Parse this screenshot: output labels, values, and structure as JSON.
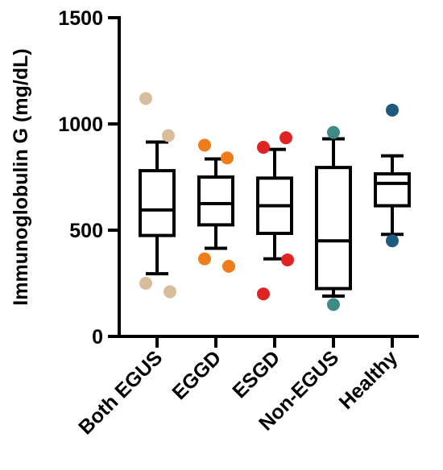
{
  "chart_data": {
    "type": "box",
    "title": "",
    "xlabel": "",
    "ylabel": "Immunoglobulin G (mg/dL)",
    "ylim": [
      0,
      1500
    ],
    "yticks": [
      0,
      500,
      1000,
      1500
    ],
    "grid": false,
    "legend": "none",
    "categories": [
      "Both EGUS",
      "EGGD",
      "ESGD",
      "Non-EGUS",
      "Healthy"
    ],
    "series": [
      {
        "category": "Both EGUS",
        "whisker_low": 295,
        "q1": 475,
        "median": 595,
        "q3": 780,
        "whisker_high": 915,
        "outliers": [
          1120,
          945,
          210,
          250
        ],
        "color": "#d9bc9c"
      },
      {
        "category": "EGGD",
        "whisker_low": 415,
        "q1": 525,
        "median": 625,
        "q3": 750,
        "whisker_high": 835,
        "outliers": [
          900,
          840,
          330,
          365
        ],
        "color": "#f07c1c"
      },
      {
        "category": "ESGD",
        "whisker_low": 365,
        "q1": 485,
        "median": 615,
        "q3": 745,
        "whisker_high": 880,
        "outliers": [
          890,
          935,
          360,
          200
        ],
        "color": "#e02424"
      },
      {
        "category": "Non-EGUS",
        "whisker_low": 190,
        "q1": 225,
        "median": 450,
        "q3": 795,
        "whisker_high": 930,
        "outliers": [
          960,
          150
        ],
        "color": "#3f8a87"
      },
      {
        "category": "Healthy",
        "whisker_low": 480,
        "q1": 615,
        "median": 720,
        "q3": 765,
        "whisker_high": 850,
        "outliers": [
          1065,
          450
        ],
        "color": "#1d5a7d"
      }
    ]
  }
}
